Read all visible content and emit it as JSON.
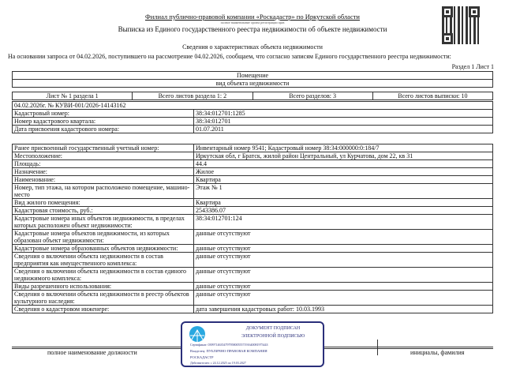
{
  "header": {
    "org": "Филиал публично-правовой компании «Роскадастр» по Иркутской области",
    "org_caption": "полное наименование органа регистрации прав",
    "title": "Выписка из Единого государственного реестра недвижимости об объекте недвижимости",
    "subtitle": "Сведения о характеристиках объекта недвижимости",
    "intro": "На  основании запроса от 04.02.2026, поступившего на рассмотрение 04.02.2026, сообщаем, что согласно записям Единого государственного реестра недвижимости:",
    "section": "Раздел 1 Лист 1"
  },
  "object": {
    "type": "Помещение",
    "caption": "вид объекта недвижимости"
  },
  "sheets": [
    "Лист № 1 раздела 1",
    "Всего листов раздела 1: 2",
    "Всего разделов: 3",
    "Всего листов выписки: 10"
  ],
  "doc_ref": "04.02.2026г. № КУВИ-001/2026-14143162",
  "table1": [
    {
      "k": "Кадастровый номер:",
      "v": "38:34:012701:1285"
    },
    {
      "k": "Номер кадастрового квартала:",
      "v": "38:34:012701"
    },
    {
      "k": "Дата присвоения кадастрового номера:",
      "v": "01.07.2011"
    }
  ],
  "table2": [
    {
      "k": "Ранее присвоенный государственный учетный номер:",
      "v": "Инвентарный номер 9541; Кадастровый номер 38:34:000000:0:184/7"
    },
    {
      "k": "Местоположение:",
      "v": "Иркутская обл, г Братск, жилой район Центральный, ул Курчатова, дом 22, кв 31"
    },
    {
      "k": "Площадь:",
      "v": "44.4"
    },
    {
      "k": "Назначение:",
      "v": "Жилое"
    },
    {
      "k": "Наименование:",
      "v": "Квартира"
    },
    {
      "k": "Номер, тип этажа, на котором расположено помещение, машино-место",
      "v": "Этаж № 1"
    },
    {
      "k": "Вид жилого помещения:",
      "v": "Квартира"
    },
    {
      "k": "Кадастровая стоимость, руб.:",
      "v": "2543386.07"
    },
    {
      "k": "Кадастровые номера иных объектов недвижимости, в пределах которых расположен объект недвижимости:",
      "v": "38:34:012701:124"
    },
    {
      "k": "Кадастровые номера объектов недвижимости, из которых образован объект недвижимости:",
      "v": "данные отсутствуют"
    },
    {
      "k": "Кадастровые номера образованных объектов недвижимости:",
      "v": "данные отсутствуют"
    },
    {
      "k": "Сведения о включении объекта недвижимости в состав предприятия как имущественного комплекса:",
      "v": "данные отсутствуют"
    },
    {
      "k": "Сведения о включении объекта недвижимости в состав единого недвижимого комплекса:",
      "v": "данные отсутствуют"
    },
    {
      "k": "Виды разрешенного использования:",
      "v": "данные отсутствуют"
    },
    {
      "k": "Сведения о включении объекта недвижимости в реестр объектов культурного наследия:",
      "v": "данные отсутствуют"
    },
    {
      "k": "Сведения о кадастровом инженере:",
      "v": "дата завершения кадастровых работ: 10.03.1993"
    }
  ],
  "signature": {
    "position_caption": "полное наименование должности",
    "name_caption": "инициалы, фамилия",
    "stamp_line1": "ДОКУМЕНТ ПОДПИСАН",
    "stamp_line2": "ЭЛЕКТРОННОЙ ПОДПИСЬЮ",
    "cert": "Сертификат: 0399714635479795800555719164008197544З",
    "owner": "Владелец: ПУБЛИЧНО-ПРАВОВАЯ КОМПАНИЯ РОСКАДАСТР",
    "valid": "Действителен: с 24.12.2025 по 19.03.2027"
  },
  "colors": {
    "stamp": "#2a2f7a",
    "logo": "#29a8e0"
  }
}
